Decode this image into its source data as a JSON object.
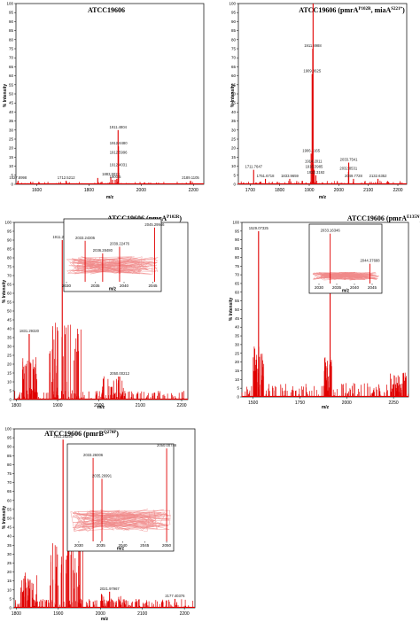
{
  "chart_data": [
    {
      "id": "p1",
      "type": "line",
      "title": "ATCC19606",
      "xlabel": "m/z",
      "ylabel": "% Intensity",
      "xlim": [
        1520,
        2240
      ],
      "ylim": [
        0,
        100
      ],
      "xticks": [
        1600,
        1800,
        2000,
        2200
      ],
      "yticks": [
        0,
        5,
        10,
        15,
        20,
        25,
        30,
        35,
        40,
        45,
        50,
        55,
        60,
        65,
        70,
        75,
        80,
        85,
        90,
        95,
        100
      ],
      "peaks": [
        {
          "x": 1527.8998,
          "y": 2,
          "label": "1527.8998"
        },
        {
          "x": 1712.5212,
          "y": 2,
          "label": "1712.5212"
        },
        {
          "x": 1833.5,
          "y": 3.5,
          "label": ""
        },
        {
          "x": 1883.5028,
          "y": 4,
          "label": "1883.5028"
        },
        {
          "x": 1890.2,
          "y": 2.5,
          "label": ""
        },
        {
          "x": 1906.6,
          "y": 3,
          "label": ""
        },
        {
          "x": 1911.4804,
          "y": 30,
          "label": "1911.4804"
        },
        {
          "x": 1912.4031,
          "y": 9,
          "label": "1912.4031"
        },
        {
          "x": 1912.5996,
          "y": 16,
          "label": "1912.5996"
        },
        {
          "x": 1912.848,
          "y": 21,
          "label": "1912.8480"
        },
        {
          "x": 1900.5,
          "y": 2.5,
          "label": "1900.5"
        },
        {
          "x": 2189.1105,
          "y": 2,
          "label": "2189.1105"
        }
      ]
    },
    {
      "id": "p2",
      "type": "line",
      "title": "ATCC19606 (pmrA",
      "title_sup": "P102R",
      "title_mid": ", miaA",
      "title_sup2": "S221*",
      "title_end": ")",
      "xlabel": "m/z",
      "ylabel": "% Intensity",
      "xlim": [
        1660,
        2230
      ],
      "ylim": [
        0,
        100
      ],
      "xticks": [
        1700,
        1800,
        1900,
        2000,
        2100,
        2200
      ],
      "yticks": [
        0,
        5,
        10,
        15,
        20,
        25,
        30,
        35,
        40,
        45,
        50,
        55,
        60,
        65,
        70,
        75,
        80,
        85,
        90,
        95,
        100
      ],
      "peaks": [
        {
          "x": 1711.7647,
          "y": 8,
          "label": "1711.7647"
        },
        {
          "x": 1751.6718,
          "y": 3,
          "label": "1751.6718"
        },
        {
          "x": 1833.9659,
          "y": 3,
          "label": "1833.9659"
        },
        {
          "x": 1906.5165,
          "y": 17,
          "label": "1906.5165"
        },
        {
          "x": 1909.8625,
          "y": 61,
          "label": "1909.8625"
        },
        {
          "x": 1911.8988,
          "y": 75,
          "label": "1911.8988"
        },
        {
          "x": 1913.0,
          "y": 100,
          "label": ""
        },
        {
          "x": 1914.2011,
          "y": 11,
          "label": "1914.2011"
        },
        {
          "x": 1916.3985,
          "y": 8,
          "label": "1916.3985"
        },
        {
          "x": 1922.3192,
          "y": 5,
          "label": "1922.3192"
        },
        {
          "x": 2033.7541,
          "y": 12,
          "label": "2033.7541"
        },
        {
          "x": 2032.8531,
          "y": 7,
          "label": "2032.8531"
        },
        {
          "x": 2049.7728,
          "y": 3,
          "label": "2049.7728"
        },
        {
          "x": 2132.6352,
          "y": 3,
          "label": "2132.6352"
        }
      ]
    },
    {
      "id": "p3",
      "type": "line",
      "title": "ATCC19606 (pmrA",
      "title_sup": "P102R",
      "title_end": ")",
      "xlabel": "m/z",
      "ylabel": "% Intensity",
      "xlim": [
        1795,
        2215
      ],
      "ylim": [
        0,
        100
      ],
      "xticks": [
        1800,
        1900,
        2000,
        2100,
        2200
      ],
      "yticks": [
        0,
        5,
        10,
        15,
        20,
        25,
        30,
        35,
        40,
        45,
        50,
        55,
        60,
        65,
        70,
        75,
        80,
        85,
        90,
        95,
        100
      ],
      "peaks": [
        {
          "x": 1831.2932,
          "y": 37,
          "label": "1831.29320"
        },
        {
          "x": 1911.25721,
          "y": 90,
          "label": "1911.25721"
        },
        {
          "x": 2050.00212,
          "y": 13,
          "label": "2050.00212"
        }
      ],
      "inset": {
        "xlim": [
          2030,
          2046
        ],
        "xticks": [
          2030,
          2035,
          2040,
          2045
        ],
        "xlabel": "m/z",
        "peaks": [
          {
            "x": 2033.24305,
            "y": 68,
            "label": "2033.24305"
          },
          {
            "x": 2036.2848,
            "y": 47,
            "label": "2036.28480"
          },
          {
            "x": 2039.22476,
            "y": 58,
            "label": "2039.22476"
          },
          {
            "x": 2045.29946,
            "y": 90,
            "label": "2045.29946"
          }
        ]
      }
    },
    {
      "id": "p4",
      "type": "line",
      "title": "ATCC19606 (pmrA",
      "title_sup": "E135N",
      "title_end": ")",
      "xlabel": "m/z",
      "ylabel": "% Intensity",
      "xlim": [
        1440,
        2330
      ],
      "ylim": [
        0,
        100
      ],
      "xticks": [
        1500,
        1750,
        2000,
        2250
      ],
      "yticks": [
        0,
        5,
        10,
        15,
        20,
        25,
        30,
        35,
        40,
        45,
        50,
        55,
        60,
        65,
        70,
        75,
        80,
        85,
        90,
        95,
        100
      ],
      "peaks": [
        {
          "x": 1529.07325,
          "y": 95,
          "label": "1529.07325"
        },
        {
          "x": 1911.31343,
          "y": 96,
          "label": "1911.31343"
        }
      ],
      "inset": {
        "xlim": [
          2028,
          2047
        ],
        "xticks": [
          2030,
          2035,
          2040,
          2045
        ],
        "xlabel": "m/z",
        "peaks": [
          {
            "x": 2033.16346,
            "y": 88,
            "label": "2033.16346"
          },
          {
            "x": 2044.37688,
            "y": 35,
            "label": "2044.37688"
          }
        ]
      }
    },
    {
      "id": "p5",
      "type": "line",
      "title": "ATCC19606 (pmrB",
      "title_sup": "Q270P",
      "title_end": ")",
      "xlabel": "m/z",
      "ylabel": "% Intensity",
      "xlim": [
        1795,
        2225
      ],
      "ylim": [
        0,
        100
      ],
      "xticks": [
        1800,
        1900,
        2000,
        2100,
        2200
      ],
      "yticks": [
        0,
        5,
        10,
        15,
        20,
        25,
        30,
        35,
        40,
        45,
        50,
        55,
        60,
        65,
        70,
        75,
        80,
        85,
        90,
        95,
        100
      ],
      "peaks": [
        {
          "x": 1911.2525,
          "y": 94,
          "label": "1911.25250"
        },
        {
          "x": 2021.97967,
          "y": 9,
          "label": "2021.97967"
        },
        {
          "x": 2177.40376,
          "y": 5,
          "label": "2177.40376"
        }
      ],
      "inset": {
        "xlim": [
          2028,
          2051
        ],
        "xticks": [
          2030,
          2035,
          2040,
          2045,
          2050
        ],
        "xlabel": "m/z",
        "peaks": [
          {
            "x": 2033.26006,
            "y": 88,
            "label": "2033.26006"
          },
          {
            "x": 2035.26991,
            "y": 66,
            "label": "2035.26991"
          },
          {
            "x": 2050.00746,
            "y": 98,
            "label": "2050.00746"
          }
        ]
      }
    }
  ]
}
